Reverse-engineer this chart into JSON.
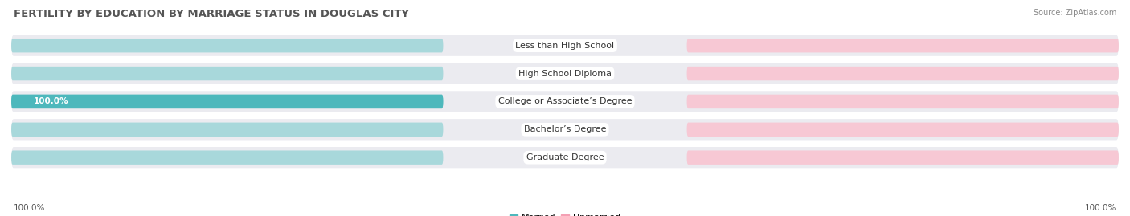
{
  "title": "FERTILITY BY EDUCATION BY MARRIAGE STATUS IN DOUGLAS CITY",
  "source": "Source: ZipAtlas.com",
  "categories": [
    "Less than High School",
    "High School Diploma",
    "College or Associate’s Degree",
    "Bachelor’s Degree",
    "Graduate Degree"
  ],
  "married_values": [
    0.0,
    0.0,
    100.0,
    0.0,
    0.0
  ],
  "unmarried_values": [
    0.0,
    0.0,
    0.0,
    0.0,
    0.0
  ],
  "married_color": "#4db8bc",
  "unmarried_color": "#f4a0b4",
  "bar_bg_married": "#a8d8db",
  "bar_bg_unmarried": "#f7c8d4",
  "row_bg_color": "#ebebf0",
  "label_bg_color": "#ffffff",
  "axis_max": 100.0,
  "bottom_left_label": "100.0%",
  "bottom_right_label": "100.0%",
  "title_fontsize": 9.5,
  "source_fontsize": 7,
  "label_fontsize": 7.5,
  "category_fontsize": 8,
  "legend_fontsize": 8,
  "value_label_color_outside": "#555555",
  "value_label_color_inside": "#ffffff"
}
